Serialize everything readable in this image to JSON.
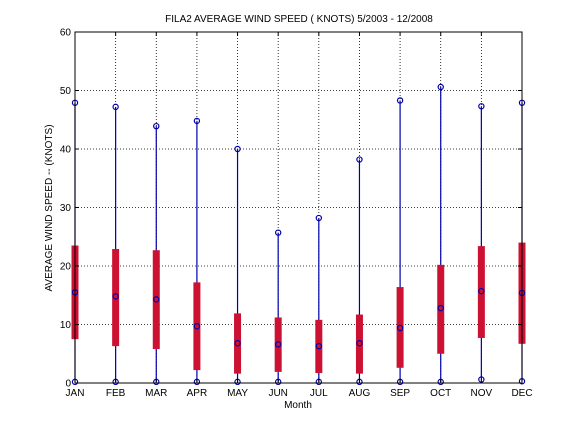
{
  "chart_data": {
    "type": "box",
    "title": "FILA2  AVERAGE WIND SPEED ( KNOTS) 5/2003 - 12/2008",
    "xlabel": "Month",
    "ylabel": "AVERAGE WIND SPEED -- (KNOTS)",
    "ylim": [
      0,
      60
    ],
    "yticks": [
      0,
      10,
      20,
      30,
      40,
      50,
      60
    ],
    "grid": true,
    "categories": [
      "JAN",
      "FEB",
      "MAR",
      "APR",
      "MAY",
      "JUN",
      "JUL",
      "AUG",
      "SEP",
      "OCT",
      "NOV",
      "DEC"
    ],
    "series": [
      {
        "min": [
          0.2,
          0.2,
          0.2,
          0.2,
          0.2,
          0.2,
          0.2,
          0.2,
          0.2,
          0.2,
          0.6,
          0.3
        ],
        "q1": [
          7.5,
          6.3,
          5.8,
          2.2,
          1.6,
          1.9,
          1.7,
          1.6,
          2.6,
          5.0,
          7.7,
          6.7
        ],
        "median": [
          15.5,
          14.8,
          14.3,
          9.7,
          6.8,
          6.6,
          6.3,
          6.8,
          9.4,
          12.8,
          15.7,
          15.4
        ],
        "q3": [
          23.5,
          22.9,
          22.7,
          17.2,
          11.9,
          11.2,
          10.8,
          11.7,
          16.4,
          20.2,
          23.4,
          24.0
        ],
        "max": [
          47.9,
          47.2,
          43.9,
          44.8,
          40.0,
          25.7,
          28.2,
          38.2,
          48.3,
          50.6,
          47.3,
          47.9
        ]
      }
    ],
    "colors": {
      "whisker": "#0000aa",
      "box": "#cc1133",
      "marker": "#0000aa"
    }
  }
}
